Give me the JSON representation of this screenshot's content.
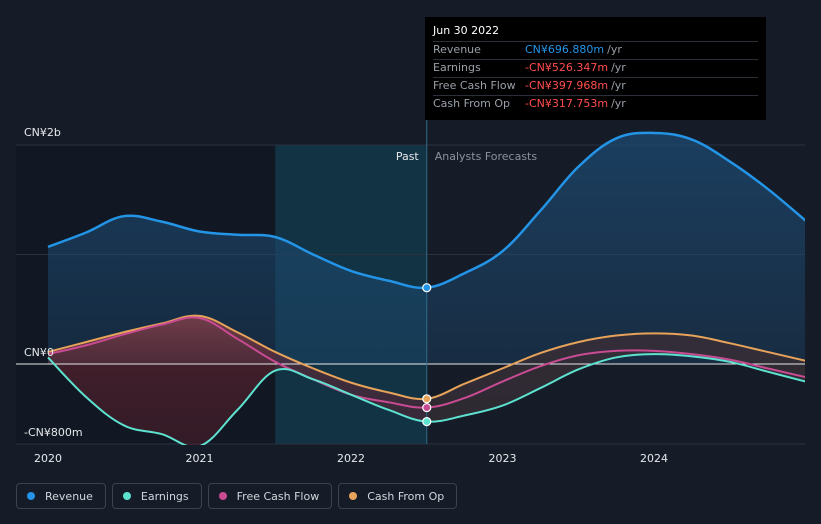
{
  "chart_data": {
    "type": "line",
    "y_axis_labels": [
      {
        "value": 2000,
        "label": "CN¥2b"
      },
      {
        "value": 0,
        "label": "CN¥0"
      },
      {
        "value": -800,
        "label": "-CN¥800m"
      }
    ],
    "ylim": [
      -800,
      2200
    ],
    "xlim": [
      2019.9,
      2025.0
    ],
    "x_ticks": [
      {
        "value": 2020.0,
        "label": "2020"
      },
      {
        "value": 2021.0,
        "label": "2021"
      },
      {
        "value": 2022.0,
        "label": "2022"
      },
      {
        "value": 2023.0,
        "label": "2023"
      },
      {
        "value": 2024.0,
        "label": "2024"
      }
    ],
    "past_label": "Past",
    "forecast_label": "Analysts Forecasts",
    "divider_x": 2022.5,
    "highlight_start_x": 2021.5,
    "series": [
      {
        "name": "Revenue",
        "color": "#2394e6",
        "points": [
          [
            2020.0,
            1070
          ],
          [
            2020.25,
            1200
          ],
          [
            2020.5,
            1350
          ],
          [
            2020.75,
            1300
          ],
          [
            2021.0,
            1210
          ],
          [
            2021.25,
            1180
          ],
          [
            2021.5,
            1160
          ],
          [
            2021.75,
            1000
          ],
          [
            2022.0,
            850
          ],
          [
            2022.25,
            760
          ],
          [
            2022.5,
            696.88
          ],
          [
            2022.75,
            830
          ],
          [
            2023.0,
            1030
          ],
          [
            2023.25,
            1400
          ],
          [
            2023.5,
            1800
          ],
          [
            2023.75,
            2060
          ],
          [
            2024.0,
            2110
          ],
          [
            2024.25,
            2050
          ],
          [
            2024.5,
            1850
          ],
          [
            2024.75,
            1600
          ],
          [
            2025.0,
            1310
          ]
        ]
      },
      {
        "name": "Earnings",
        "color": "#5ee2d0",
        "points": [
          [
            2020.0,
            60
          ],
          [
            2020.25,
            -300
          ],
          [
            2020.5,
            -560
          ],
          [
            2020.75,
            -640
          ],
          [
            2021.0,
            -750
          ],
          [
            2021.25,
            -420
          ],
          [
            2021.5,
            -60
          ],
          [
            2021.75,
            -140
          ],
          [
            2022.0,
            -280
          ],
          [
            2022.25,
            -420
          ],
          [
            2022.5,
            -526.347
          ],
          [
            2022.75,
            -470
          ],
          [
            2023.0,
            -380
          ],
          [
            2023.25,
            -220
          ],
          [
            2023.5,
            -50
          ],
          [
            2023.75,
            60
          ],
          [
            2024.0,
            90
          ],
          [
            2024.25,
            70
          ],
          [
            2024.5,
            20
          ],
          [
            2024.75,
            -70
          ],
          [
            2025.0,
            -160
          ]
        ]
      },
      {
        "name": "Free Cash Flow",
        "color": "#c84b93",
        "points": [
          [
            2020.0,
            90
          ],
          [
            2020.25,
            170
          ],
          [
            2020.5,
            270
          ],
          [
            2020.75,
            360
          ],
          [
            2021.0,
            420
          ],
          [
            2021.25,
            230
          ],
          [
            2021.5,
            20
          ],
          [
            2021.75,
            -140
          ],
          [
            2022.0,
            -280
          ],
          [
            2022.25,
            -350
          ],
          [
            2022.5,
            -397.968
          ],
          [
            2022.75,
            -310
          ],
          [
            2023.0,
            -160
          ],
          [
            2023.25,
            -20
          ],
          [
            2023.5,
            80
          ],
          [
            2023.75,
            120
          ],
          [
            2024.0,
            120
          ],
          [
            2024.25,
            90
          ],
          [
            2024.5,
            40
          ],
          [
            2024.75,
            -40
          ],
          [
            2025.0,
            -120
          ]
        ]
      },
      {
        "name": "Cash From Op",
        "color": "#e7a35a",
        "points": [
          [
            2020.0,
            110
          ],
          [
            2020.25,
            200
          ],
          [
            2020.5,
            290
          ],
          [
            2020.75,
            370
          ],
          [
            2021.0,
            440
          ],
          [
            2021.25,
            290
          ],
          [
            2021.5,
            110
          ],
          [
            2021.75,
            -40
          ],
          [
            2022.0,
            -170
          ],
          [
            2022.25,
            -260
          ],
          [
            2022.5,
            -317.753
          ],
          [
            2022.75,
            -180
          ],
          [
            2023.0,
            -40
          ],
          [
            2023.25,
            100
          ],
          [
            2023.5,
            200
          ],
          [
            2023.75,
            260
          ],
          [
            2024.0,
            280
          ],
          [
            2024.25,
            260
          ],
          [
            2024.5,
            190
          ],
          [
            2024.75,
            110
          ],
          [
            2025.0,
            30
          ]
        ]
      }
    ]
  },
  "tooltip": {
    "date": "Jun 30 2022",
    "unit": "/yr",
    "rows": [
      {
        "label": "Revenue",
        "value": "CN¥696.880m",
        "color": "#2394e6"
      },
      {
        "label": "Earnings",
        "value": "-CN¥526.347m",
        "color": "#ff4d4d"
      },
      {
        "label": "Free Cash Flow",
        "value": "-CN¥397.968m",
        "color": "#ff4d4d"
      },
      {
        "label": "Cash From Op",
        "value": "-CN¥317.753m",
        "color": "#ff4d4d"
      }
    ]
  },
  "legend": [
    {
      "label": "Revenue",
      "color": "#2394e6"
    },
    {
      "label": "Earnings",
      "color": "#5ee2d0"
    },
    {
      "label": "Free Cash Flow",
      "color": "#c84b93"
    },
    {
      "label": "Cash From Op",
      "color": "#e7a35a"
    }
  ]
}
